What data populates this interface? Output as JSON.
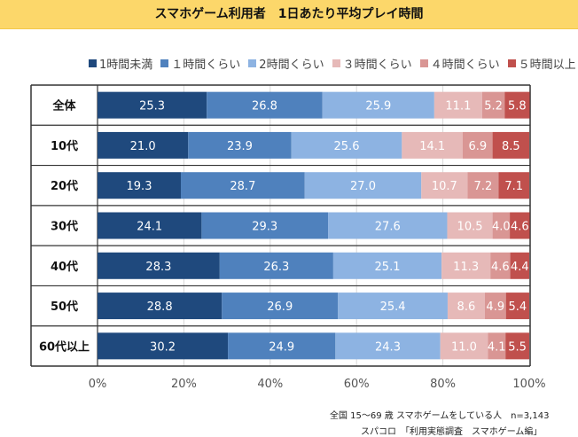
{
  "title": "スマホゲーム利用者　1日あたり平均プレイ時間",
  "footer": {
    "line1": "全国 15～69 歳 スマホゲームをしている人　n=3,143",
    "line2": "スパコロ　「利用実態調査　スマホゲーム編」"
  },
  "chart_data": {
    "type": "bar",
    "orientation": "horizontal",
    "stacked": true,
    "percent": true,
    "title": "スマホゲーム利用者　1日あたり平均プレイ時間",
    "xlabel": "",
    "ylabel": "",
    "xlim": [
      0,
      100
    ],
    "x_ticks": [
      "0%",
      "20%",
      "40%",
      "60%",
      "80%",
      "100%"
    ],
    "grid": true,
    "legend_position": "top",
    "categories": [
      "全体",
      "10代",
      "20代",
      "30代",
      "40代",
      "50代",
      "60代以上"
    ],
    "series": [
      {
        "name": "1時間未満",
        "color": "#1f497d",
        "values": [
          25.3,
          21.0,
          19.3,
          24.1,
          28.3,
          28.8,
          30.2
        ]
      },
      {
        "name": "１時間くらい",
        "color": "#4f81bd",
        "values": [
          26.8,
          23.9,
          28.7,
          29.3,
          26.3,
          26.9,
          24.9
        ]
      },
      {
        "name": "2時間くらい",
        "color": "#8db3e2",
        "values": [
          25.9,
          25.6,
          27.0,
          27.6,
          25.1,
          25.4,
          24.3
        ]
      },
      {
        "name": "３時間くらい",
        "color": "#e6b9b8",
        "values": [
          11.1,
          14.1,
          10.7,
          10.5,
          11.3,
          8.6,
          11.0
        ]
      },
      {
        "name": "４時間くらい",
        "color": "#d99694",
        "values": [
          5.2,
          6.9,
          7.2,
          4.0,
          4.6,
          4.9,
          4.1
        ]
      },
      {
        "name": "５時間以上",
        "color": "#c0504d",
        "values": [
          5.8,
          8.5,
          7.1,
          4.6,
          4.4,
          5.4,
          5.5
        ]
      }
    ]
  }
}
